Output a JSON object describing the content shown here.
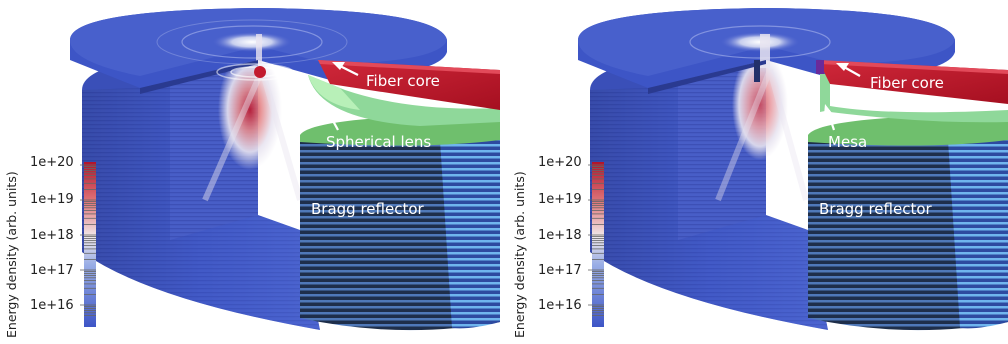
{
  "colorbar": {
    "title": "Energy density (arb. units)",
    "tick_labels": [
      "1e+20",
      "1e+19",
      "1e+18",
      "1e+17",
      "1e+16"
    ]
  },
  "panels": [
    {
      "labels": {
        "top": "Fiber core",
        "middle": "Spherical lens",
        "bottom": "Bragg reflector"
      }
    },
    {
      "labels": {
        "top": "Fiber core",
        "middle": "Mesa",
        "bottom": "Bragg reflector"
      }
    }
  ],
  "colors": {
    "fiber_core": "#c0182a",
    "lens_mesa": "#8fd89a",
    "bragg_top": "#6fbf6d",
    "low_energy": "#3d55c6",
    "high_energy": "#b3122a"
  }
}
